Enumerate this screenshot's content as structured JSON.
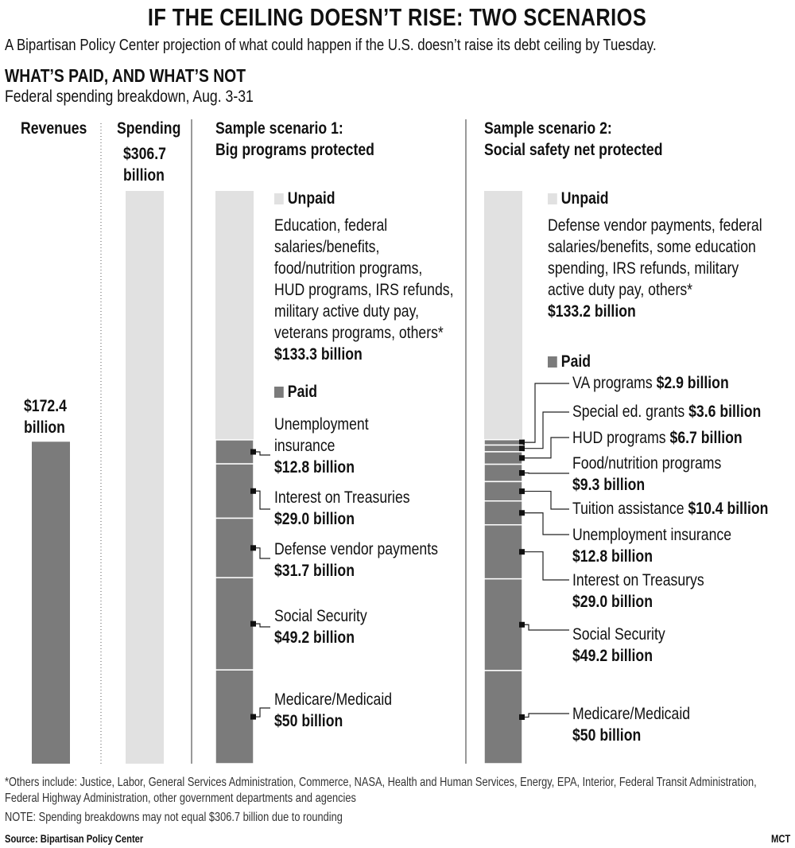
{
  "title": "IF THE CEILING DOESN’T RISE: TWO SCENARIOS",
  "subtitle": "A Bipartisan Policy Center projection of what could happen if the U.S. doesn’t raise its debt ceiling by Tuesday.",
  "section_title": "WHAT’S PAID, AND WHAT’S NOT",
  "section_subtitle": "Federal spending breakdown, Aug. 3-31",
  "colors": {
    "unpaid": "#e1e1e1",
    "paid": "#7b7b7b",
    "marker": "#111111"
  },
  "chart_data": {
    "type": "bar",
    "units": "billion USD",
    "revenues": {
      "label": "Revenues",
      "value": 172.4,
      "value_label": "$172.4 billion"
    },
    "spending": {
      "label": "Spending",
      "value": 306.7,
      "value_label": "$306.7 billion"
    },
    "scenarios": [
      {
        "title_line1": "Sample scenario 1:",
        "title_line2": "Big programs protected",
        "unpaid": {
          "label": "Unpaid",
          "value": 133.3,
          "description": [
            "Education, federal",
            "salaries/benefits,",
            "food/nutrition programs,",
            "HUD programs, IRS refunds,",
            "military active duty pay,",
            "veterans programs, others*"
          ],
          "value_label": "$133.3 billion"
        },
        "paid_label": "Paid",
        "paid": [
          {
            "name_lines": [
              "Unemployment",
              "insurance"
            ],
            "value": 12.8,
            "value_label": "$12.8 billion"
          },
          {
            "name_lines": [
              "Interest on Treasuries"
            ],
            "value": 29.0,
            "value_label": "$29.0 billion"
          },
          {
            "name_lines": [
              "Defense vendor payments"
            ],
            "value": 31.7,
            "value_label": "$31.7 billion"
          },
          {
            "name_lines": [
              "Social Security"
            ],
            "value": 49.2,
            "value_label": "$49.2 billion"
          },
          {
            "name_lines": [
              "Medicare/Medicaid"
            ],
            "value": 50,
            "value_label": "$50 billion"
          }
        ]
      },
      {
        "title_line1": "Sample scenario 2:",
        "title_line2": "Social safety net protected",
        "unpaid": {
          "label": "Unpaid",
          "value": 133.2,
          "description": [
            "Defense vendor payments, federal",
            "salaries/benefits, some education",
            "spending, IRS refunds, military",
            "active duty pay, others*"
          ],
          "value_label": "$133.2 billion"
        },
        "paid_label": "Paid",
        "paid": [
          {
            "name": "VA  programs",
            "value": 2.9,
            "value_label": "$2.9 billion"
          },
          {
            "name": "Special ed. grants",
            "value": 3.6,
            "value_label": "$3.6 billion"
          },
          {
            "name": "HUD programs",
            "value": 6.7,
            "value_label": "$6.7 billion"
          },
          {
            "name": "Food/nutrition programs",
            "value": 9.3,
            "value_label": "$9.3 billion"
          },
          {
            "name": "Tuition assistance",
            "value": 10.4,
            "value_label": "$10.4 billion"
          },
          {
            "name": "Unemployment insurance",
            "value": 12.8,
            "value_label": "$12.8 billion"
          },
          {
            "name": "Interest on Treasurys",
            "value": 29.0,
            "value_label": "$29.0 billion"
          },
          {
            "name": "Social Security",
            "value": 49.2,
            "value_label": "$49.2 billion"
          },
          {
            "name": "Medicare/Medicaid",
            "value": 50,
            "value_label": "$50 billion"
          }
        ]
      }
    ]
  },
  "footnote_line1": "*Others include: Justice, Labor, General Services Administration, Commerce, NASA, Health and Human Services, Energy, EPA, Interior, Federal Transit Administration,",
  "footnote_line2": "Federal Highway Administration, other government departments and agencies",
  "note": "NOTE: Spending breakdowns may not equal $306.7 billion due to rounding",
  "source": "Source: Bipartisan Policy Center",
  "credit": "MCT"
}
